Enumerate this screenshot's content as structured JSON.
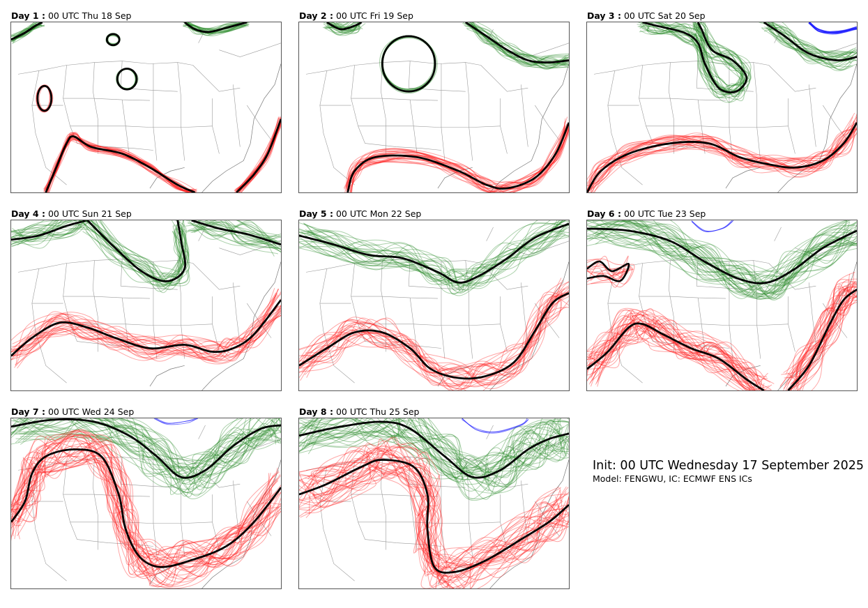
{
  "panels": [
    {
      "day_label": "Day 1 :",
      "valid": "00 UTC Thu 18 Sep"
    },
    {
      "day_label": "Day 2 :",
      "valid": "00 UTC Fri 19 Sep"
    },
    {
      "day_label": "Day 3 :",
      "valid": "00 UTC Sat 20 Sep"
    },
    {
      "day_label": "Day 4 :",
      "valid": "00 UTC Sun 21 Sep"
    },
    {
      "day_label": "Day 5 :",
      "valid": "00 UTC Mon 22 Sep"
    },
    {
      "day_label": "Day 6 :",
      "valid": "00 UTC Tue 23 Sep"
    },
    {
      "day_label": "Day 7 :",
      "valid": "00 UTC Wed 24 Sep"
    },
    {
      "day_label": "Day 8 :",
      "valid": "00 UTC Thu 25 Sep"
    }
  ],
  "info": {
    "init": "Init: 00 UTC Wednesday 17 September 2025",
    "model": "Model: FENGWU, IC: ECMWF ENS ICs"
  },
  "colors": {
    "upper_contour": "#2e8b2e",
    "lower_contour": "#ff2020",
    "third_contour": "#2020ff",
    "ensemble_mean": "#000000",
    "borders": "#9a9a9a"
  }
}
